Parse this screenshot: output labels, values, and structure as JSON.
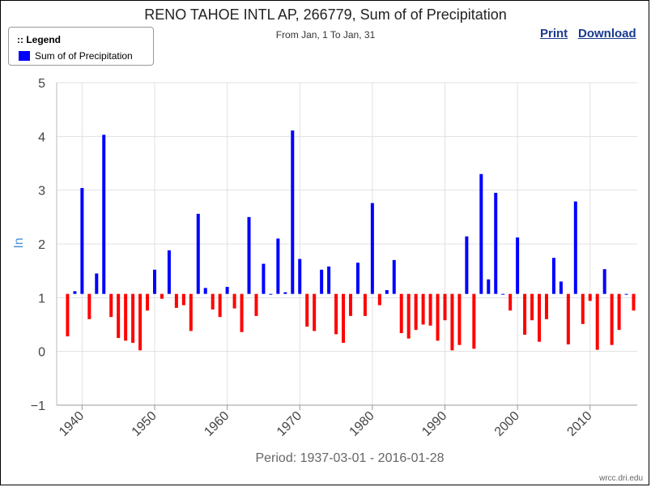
{
  "page": {
    "title": "RENO TAHOE INTL AP, 266779, Sum of of Precipitation",
    "subtitle": "From Jan, 1 To Jan, 31",
    "print_label": "Print",
    "download_label": "Download",
    "legend_title": ":: Legend",
    "legend_label": "Sum of of Precipitation",
    "credit": "wrcc.dri.edu"
  },
  "colors": {
    "above": "#0000ff",
    "below": "#ff0000",
    "axis_title": "#4a90d9"
  },
  "chart_data": {
    "type": "bar",
    "title": "RENO TAHOE INTL AP, 266779, Sum of of Precipitation",
    "subtitle": "From Jan, 1 To Jan, 31",
    "xlabel": "Period: 1937-03-01 - 2016-01-28",
    "ylabel": "In",
    "ylim": [
      -1,
      5
    ],
    "xlim": [
      1936.5,
      2016.5
    ],
    "yticks": [
      -1,
      0,
      1,
      2,
      3,
      4,
      5
    ],
    "xticks": [
      1940,
      1950,
      1960,
      1970,
      1980,
      1990,
      2000,
      2010
    ],
    "baseline": 1.07,
    "grid": true,
    "legend": "top-left",
    "series": [
      {
        "name": "Sum of of Precipitation",
        "x": [
          1938,
          1939,
          1940,
          1941,
          1942,
          1943,
          1944,
          1945,
          1946,
          1947,
          1948,
          1949,
          1950,
          1951,
          1952,
          1953,
          1954,
          1955,
          1956,
          1957,
          1958,
          1959,
          1960,
          1961,
          1962,
          1963,
          1964,
          1965,
          1966,
          1967,
          1968,
          1969,
          1970,
          1971,
          1972,
          1973,
          1974,
          1975,
          1976,
          1977,
          1978,
          1979,
          1980,
          1981,
          1982,
          1983,
          1984,
          1985,
          1986,
          1987,
          1988,
          1989,
          1990,
          1991,
          1992,
          1993,
          1994,
          1995,
          1996,
          1997,
          1998,
          1999,
          2000,
          2001,
          2002,
          2003,
          2004,
          2005,
          2006,
          2007,
          2008,
          2009,
          2010,
          2011,
          2012,
          2013,
          2014,
          2015,
          2016
        ],
        "values": [
          0.28,
          1.12,
          3.04,
          0.6,
          1.45,
          4.03,
          0.64,
          0.25,
          0.2,
          0.16,
          0.02,
          0.76,
          1.52,
          0.98,
          1.88,
          0.81,
          0.86,
          0.38,
          2.56,
          1.18,
          0.78,
          0.64,
          1.2,
          0.8,
          0.36,
          2.5,
          0.66,
          1.63,
          1.07,
          2.1,
          1.1,
          4.11,
          1.72,
          0.46,
          0.38,
          1.52,
          1.58,
          0.32,
          0.16,
          0.66,
          1.65,
          0.66,
          2.76,
          0.86,
          1.14,
          1.7,
          0.34,
          0.24,
          0.4,
          0.5,
          0.48,
          0.2,
          0.58,
          0.02,
          0.12,
          2.14,
          0.05,
          3.3,
          1.34,
          2.95,
          1.07,
          0.76,
          2.12,
          0.31,
          0.58,
          0.18,
          0.6,
          1.74,
          1.3,
          0.13,
          2.79,
          0.51,
          0.94,
          0.03,
          1.53,
          0.12,
          0.4,
          1.07,
          0.76
        ]
      }
    ]
  }
}
